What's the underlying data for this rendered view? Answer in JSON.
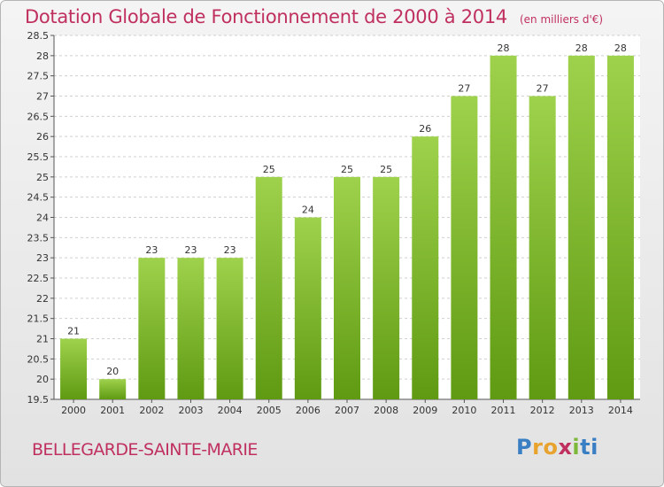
{
  "header": {
    "title": "Dotation Globale de Fonctionnement de 2000 à 2014",
    "subtitle": "(en milliers d'€)"
  },
  "footer": {
    "commune": "BELLEGARDE-SAINTE-MARIE",
    "logo_letters": [
      "P",
      "r",
      "o",
      "x",
      "i",
      "ti"
    ]
  },
  "colors": {
    "title": "#c0305e",
    "bar_top": "#9fd24c",
    "bar_bottom": "#5f9a12",
    "grid": "#cfcfcf"
  },
  "chart_data": {
    "type": "bar",
    "title": "Dotation Globale de Fonctionnement de 2000 à 2014",
    "subtitle": "(en milliers d'€)",
    "xlabel": "",
    "ylabel": "",
    "categories": [
      "2000",
      "2001",
      "2002",
      "2003",
      "2004",
      "2005",
      "2006",
      "2007",
      "2008",
      "2009",
      "2010",
      "2011",
      "2012",
      "2013",
      "2014"
    ],
    "values": [
      21,
      20,
      23,
      23,
      23,
      25,
      24,
      25,
      25,
      26,
      27,
      28,
      27,
      28,
      28
    ],
    "bar_values": [
      21.0,
      20.0,
      23.0,
      23.0,
      23.0,
      25.0,
      24.0,
      25.0,
      25.0,
      26.0,
      27.0,
      28.0,
      27.0,
      28.0,
      28.0
    ],
    "ylim": [
      19.5,
      28.5
    ],
    "yticks": [
      "19.5",
      "20",
      "20.5",
      "21",
      "21.5",
      "22",
      "22.5",
      "23",
      "23.5",
      "24",
      "24.5",
      "25",
      "25.5",
      "26",
      "26.5",
      "27",
      "27.5",
      "28",
      "28.5"
    ],
    "grid": true,
    "legend": "none"
  }
}
